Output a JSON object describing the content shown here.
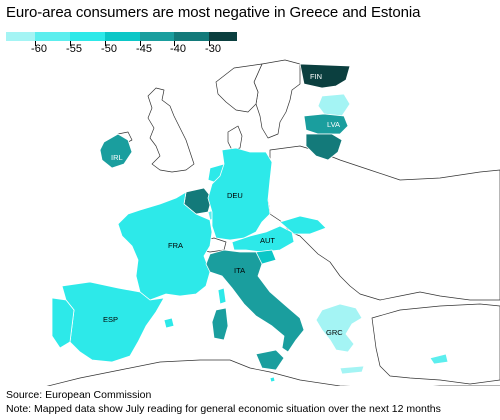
{
  "title": "Euro-area consumers are most negative in Greece and Estonia",
  "legend": {
    "labels": [
      "-60",
      "-55",
      "-50",
      "-45",
      "-40",
      "-30"
    ],
    "colors": [
      "#a4f4f4",
      "#5ceeee",
      "#2de9e9",
      "#0bc7c7",
      "#1a9e9e",
      "#137a7a",
      "#0b3f3f"
    ]
  },
  "chart_data": {
    "type": "choropleth",
    "title": "Euro-area consumers are most negative in Greece and Estonia",
    "labelled_countries": [
      "FIN",
      "LVA",
      "IRL",
      "DEU",
      "FRA",
      "AUT",
      "ITA",
      "ESP",
      "GRC"
    ]
  },
  "labels": {
    "fin": "FIN",
    "lva": "LVA",
    "irl": "IRL",
    "deu": "DEU",
    "fra": "FRA",
    "aut": "AUT",
    "ita": "ITA",
    "esp": "ESP",
    "grc": "GRC"
  },
  "footer": {
    "source": "Source: European Commission",
    "note": "Note: Mapped data show July reading for general economic situation over the next 12 months"
  }
}
